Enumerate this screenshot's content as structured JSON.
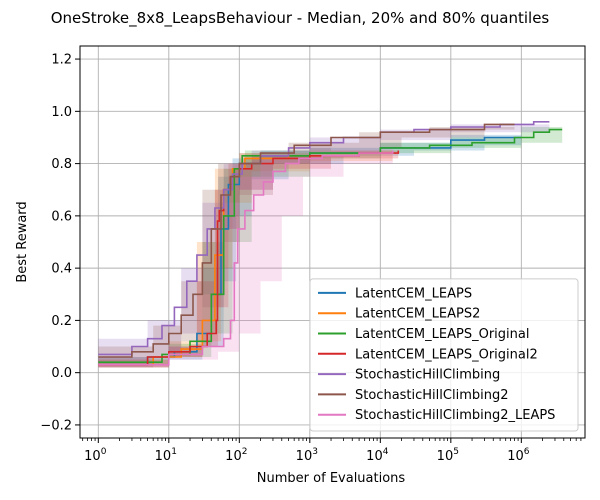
{
  "chart_data": {
    "type": "line",
    "title": "OneStroke_8x8_LeapsBehaviour - Median, 20% and 80% quantiles",
    "xlabel": "Number of Evaluations",
    "ylabel": "Best Reward",
    "xscale": "log",
    "xlim": [
      0.55,
      8000000
    ],
    "ylim": [
      -0.25,
      1.25
    ],
    "grid": true,
    "legend_position": "lower-right",
    "x_ticks": [
      {
        "value": 1,
        "base": "10",
        "exp": "0"
      },
      {
        "value": 10,
        "base": "10",
        "exp": "1"
      },
      {
        "value": 100,
        "base": "10",
        "exp": "2"
      },
      {
        "value": 1000,
        "base": "10",
        "exp": "3"
      },
      {
        "value": 10000,
        "base": "10",
        "exp": "4"
      },
      {
        "value": 100000,
        "base": "10",
        "exp": "5"
      },
      {
        "value": 1000000,
        "base": "10",
        "exp": "6"
      }
    ],
    "y_ticks": [
      {
        "value": -0.2,
        "label": "−0.2"
      },
      {
        "value": 0.0,
        "label": "0.0"
      },
      {
        "value": 0.2,
        "label": "0.2"
      },
      {
        "value": 0.4,
        "label": "0.4"
      },
      {
        "value": 0.6,
        "label": "0.6"
      },
      {
        "value": 0.8,
        "label": "0.8"
      },
      {
        "value": 1.0,
        "label": "1.0"
      },
      {
        "value": 1.2,
        "label": "1.2"
      }
    ],
    "series": [
      {
        "name": "LatentCEM_LEAPS",
        "color": "#1f77b4",
        "points": [
          [
            1,
            0.03
          ],
          [
            5,
            0.06
          ],
          [
            12,
            0.08
          ],
          [
            25,
            0.15
          ],
          [
            40,
            0.3
          ],
          [
            55,
            0.55
          ],
          [
            70,
            0.72
          ],
          [
            100,
            0.8
          ],
          [
            200,
            0.83
          ],
          [
            1000,
            0.84
          ],
          [
            10000,
            0.86
          ],
          [
            100000,
            0.89
          ],
          [
            300000,
            0.9
          ],
          [
            1000000,
            0.9
          ]
        ],
        "lower": [
          [
            1,
            0.02
          ],
          [
            10,
            0.05
          ],
          [
            30,
            0.1
          ],
          [
            60,
            0.35
          ],
          [
            90,
            0.6
          ],
          [
            150,
            0.74
          ],
          [
            500,
            0.8
          ],
          [
            3000,
            0.83
          ],
          [
            30000,
            0.85
          ],
          [
            300000,
            0.87
          ],
          [
            1000000,
            0.88
          ]
        ],
        "upper": [
          [
            1,
            0.06
          ],
          [
            10,
            0.1
          ],
          [
            30,
            0.4
          ],
          [
            50,
            0.75
          ],
          [
            80,
            0.82
          ],
          [
            200,
            0.85
          ],
          [
            1000,
            0.86
          ],
          [
            10000,
            0.88
          ],
          [
            100000,
            0.91
          ],
          [
            1000000,
            0.92
          ]
        ]
      },
      {
        "name": "LatentCEM_LEAPS2",
        "color": "#ff7f0e",
        "points": [
          [
            1,
            0.03
          ],
          [
            6,
            0.06
          ],
          [
            15,
            0.09
          ],
          [
            30,
            0.2
          ],
          [
            45,
            0.45
          ],
          [
            60,
            0.7
          ],
          [
            80,
            0.78
          ],
          [
            120,
            0.82
          ],
          [
            500,
            0.83
          ],
          [
            5000,
            0.84
          ],
          [
            15000,
            0.85
          ]
        ],
        "lower": [
          [
            1,
            0.02
          ],
          [
            10,
            0.06
          ],
          [
            30,
            0.12
          ],
          [
            55,
            0.4
          ],
          [
            80,
            0.65
          ],
          [
            150,
            0.77
          ],
          [
            1000,
            0.81
          ],
          [
            15000,
            0.83
          ]
        ],
        "upper": [
          [
            1,
            0.05
          ],
          [
            10,
            0.12
          ],
          [
            25,
            0.5
          ],
          [
            45,
            0.78
          ],
          [
            100,
            0.84
          ],
          [
            1000,
            0.85
          ],
          [
            15000,
            0.86
          ]
        ]
      },
      {
        "name": "LatentCEM_LEAPS_Original",
        "color": "#2ca02c",
        "points": [
          [
            1,
            0.04
          ],
          [
            8,
            0.07
          ],
          [
            20,
            0.12
          ],
          [
            40,
            0.3
          ],
          [
            60,
            0.6
          ],
          [
            85,
            0.78
          ],
          [
            110,
            0.83
          ],
          [
            1000,
            0.84
          ],
          [
            10000,
            0.86
          ],
          [
            50000,
            0.87
          ],
          [
            200000,
            0.88
          ],
          [
            800000,
            0.9
          ],
          [
            1500000,
            0.92
          ],
          [
            2500000,
            0.93
          ],
          [
            3800000,
            0.93
          ]
        ],
        "lower": [
          [
            1,
            0.03
          ],
          [
            10,
            0.06
          ],
          [
            40,
            0.15
          ],
          [
            80,
            0.5
          ],
          [
            150,
            0.75
          ],
          [
            1000,
            0.82
          ],
          [
            10000,
            0.84
          ],
          [
            100000,
            0.86
          ],
          [
            1000000,
            0.88
          ],
          [
            3800000,
            0.91
          ]
        ],
        "upper": [
          [
            1,
            0.06
          ],
          [
            10,
            0.11
          ],
          [
            30,
            0.5
          ],
          [
            60,
            0.78
          ],
          [
            120,
            0.85
          ],
          [
            1000,
            0.86
          ],
          [
            10000,
            0.88
          ],
          [
            100000,
            0.9
          ],
          [
            1000000,
            0.94
          ],
          [
            3800000,
            0.95
          ]
        ]
      },
      {
        "name": "LatentCEM_LEAPS_Original2",
        "color": "#d62728",
        "points": [
          [
            1,
            0.03
          ],
          [
            5,
            0.06
          ],
          [
            10,
            0.08
          ],
          [
            20,
            0.1
          ],
          [
            35,
            0.15
          ],
          [
            47,
            0.2
          ],
          [
            49,
            0.58
          ],
          [
            52,
            0.62
          ],
          [
            60,
            0.7
          ],
          [
            75,
            0.75
          ],
          [
            100,
            0.78
          ],
          [
            150,
            0.8
          ],
          [
            300,
            0.82
          ],
          [
            1000,
            0.83
          ],
          [
            5000,
            0.84
          ],
          [
            18000,
            0.85
          ]
        ],
        "lower": [
          [
            1,
            0.02
          ],
          [
            10,
            0.06
          ],
          [
            30,
            0.1
          ],
          [
            50,
            0.25
          ],
          [
            70,
            0.55
          ],
          [
            100,
            0.7
          ],
          [
            300,
            0.78
          ],
          [
            2000,
            0.82
          ],
          [
            18000,
            0.83
          ]
        ],
        "upper": [
          [
            1,
            0.05
          ],
          [
            10,
            0.1
          ],
          [
            25,
            0.35
          ],
          [
            45,
            0.7
          ],
          [
            70,
            0.8
          ],
          [
            150,
            0.83
          ],
          [
            2000,
            0.85
          ],
          [
            18000,
            0.86
          ]
        ]
      },
      {
        "name": "StochasticHillClimbing",
        "color": "#9467bd",
        "points": [
          [
            1,
            0.07
          ],
          [
            3,
            0.1
          ],
          [
            5,
            0.13
          ],
          [
            8,
            0.18
          ],
          [
            12,
            0.25
          ],
          [
            18,
            0.35
          ],
          [
            25,
            0.45
          ],
          [
            35,
            0.55
          ],
          [
            45,
            0.63
          ],
          [
            60,
            0.7
          ],
          [
            80,
            0.76
          ],
          [
            110,
            0.8
          ],
          [
            200,
            0.83
          ],
          [
            500,
            0.86
          ],
          [
            1000,
            0.88
          ],
          [
            3000,
            0.9
          ],
          [
            10000,
            0.92
          ],
          [
            30000,
            0.93
          ],
          [
            100000,
            0.94
          ],
          [
            500000,
            0.95
          ],
          [
            1500000,
            0.96
          ],
          [
            2500000,
            0.96
          ]
        ],
        "lower": [
          [
            1,
            0.03
          ],
          [
            5,
            0.06
          ],
          [
            15,
            0.15
          ],
          [
            30,
            0.3
          ],
          [
            60,
            0.55
          ],
          [
            100,
            0.7
          ],
          [
            300,
            0.8
          ],
          [
            1000,
            0.84
          ],
          [
            10000,
            0.89
          ],
          [
            100000,
            0.92
          ],
          [
            2500000,
            0.95
          ]
        ],
        "upper": [
          [
            1,
            0.13
          ],
          [
            5,
            0.2
          ],
          [
            15,
            0.4
          ],
          [
            30,
            0.65
          ],
          [
            60,
            0.8
          ],
          [
            150,
            0.85
          ],
          [
            1000,
            0.9
          ],
          [
            10000,
            0.93
          ],
          [
            100000,
            0.95
          ],
          [
            2500000,
            0.97
          ]
        ]
      },
      {
        "name": "StochasticHillClimbing2",
        "color": "#8c564b",
        "points": [
          [
            1,
            0.06
          ],
          [
            3,
            0.08
          ],
          [
            6,
            0.11
          ],
          [
            10,
            0.15
          ],
          [
            15,
            0.22
          ],
          [
            22,
            0.3
          ],
          [
            30,
            0.42
          ],
          [
            40,
            0.55
          ],
          [
            55,
            0.68
          ],
          [
            75,
            0.75
          ],
          [
            100,
            0.8
          ],
          [
            200,
            0.84
          ],
          [
            600,
            0.87
          ],
          [
            2000,
            0.9
          ],
          [
            10000,
            0.92
          ],
          [
            50000,
            0.93
          ],
          [
            300000,
            0.95
          ],
          [
            800000,
            0.95
          ]
        ],
        "lower": [
          [
            1,
            0.02
          ],
          [
            6,
            0.06
          ],
          [
            15,
            0.12
          ],
          [
            30,
            0.25
          ],
          [
            60,
            0.5
          ],
          [
            100,
            0.68
          ],
          [
            300,
            0.8
          ],
          [
            2000,
            0.86
          ],
          [
            20000,
            0.9
          ],
          [
            300000,
            0.93
          ],
          [
            800000,
            0.94
          ]
        ],
        "upper": [
          [
            1,
            0.1
          ],
          [
            6,
            0.18
          ],
          [
            15,
            0.35
          ],
          [
            30,
            0.7
          ],
          [
            50,
            0.8
          ],
          [
            100,
            0.84
          ],
          [
            500,
            0.88
          ],
          [
            5000,
            0.92
          ],
          [
            50000,
            0.94
          ],
          [
            800000,
            0.96
          ]
        ]
      },
      {
        "name": "StochasticHillClimbing2_LEAPS",
        "color": "#e377c2",
        "points": [
          [
            1,
            0.03
          ],
          [
            10,
            0.07
          ],
          [
            30,
            0.1
          ],
          [
            60,
            0.13
          ],
          [
            75,
            0.2
          ],
          [
            85,
            0.42
          ],
          [
            95,
            0.55
          ],
          [
            120,
            0.62
          ],
          [
            160,
            0.68
          ],
          [
            220,
            0.73
          ],
          [
            300,
            0.77
          ],
          [
            450,
            0.8
          ],
          [
            700,
            0.82
          ],
          [
            1500,
            0.83
          ],
          [
            5000,
            0.84
          ],
          [
            15000,
            0.85
          ]
        ],
        "lower": [
          [
            1,
            0.02
          ],
          [
            10,
            0.05
          ],
          [
            50,
            0.08
          ],
          [
            100,
            0.15
          ],
          [
            200,
            0.35
          ],
          [
            400,
            0.6
          ],
          [
            800,
            0.75
          ],
          [
            3000,
            0.8
          ],
          [
            15000,
            0.83
          ]
        ],
        "upper": [
          [
            1,
            0.06
          ],
          [
            10,
            0.1
          ],
          [
            30,
            0.3
          ],
          [
            60,
            0.65
          ],
          [
            100,
            0.75
          ],
          [
            200,
            0.82
          ],
          [
            1000,
            0.86
          ],
          [
            15000,
            0.87
          ]
        ]
      }
    ]
  }
}
